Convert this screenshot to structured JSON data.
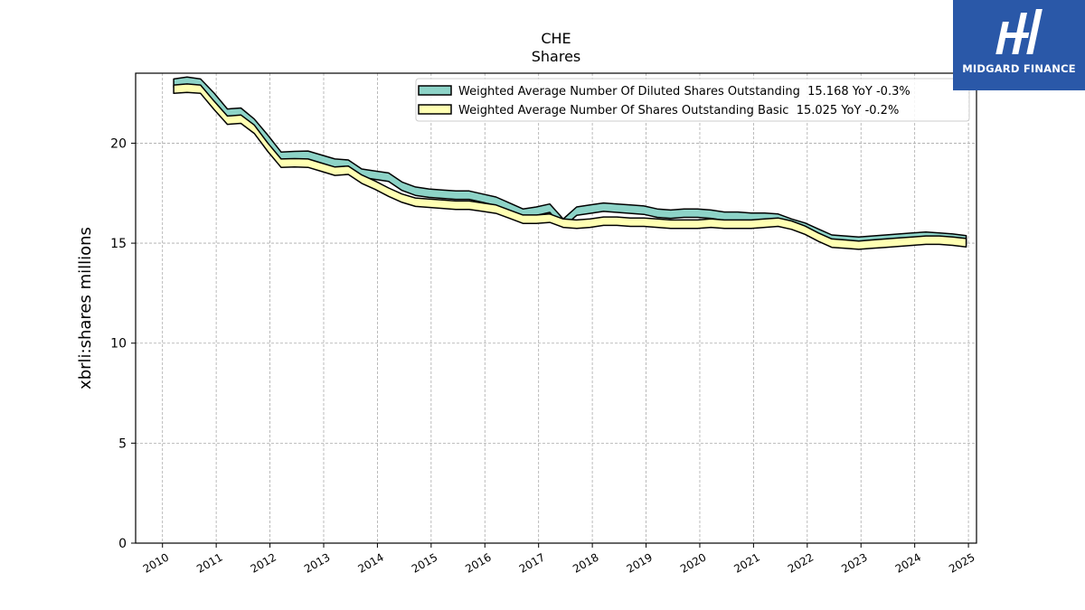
{
  "chart_data": {
    "type": "line",
    "title": "CHE",
    "subtitle": "Shares",
    "ylabel": "xbrli:shares millions",
    "xlabel": "",
    "xlim": [
      2009.5,
      2025.15
    ],
    "ylim": [
      0,
      23.5
    ],
    "yticks": [
      0,
      5,
      10,
      15,
      20
    ],
    "xticks": [
      "2010",
      "2011",
      "2012",
      "2013",
      "2014",
      "2015",
      "2016",
      "2017",
      "2018",
      "2019",
      "2020",
      "2021",
      "2022",
      "2023",
      "2024",
      "2025"
    ],
    "grid": true,
    "legend_position": "upper-right",
    "series": [
      {
        "name": "Weighted Average Number Of Diluted Shares Outstanding  15.168 YoY -0.3%",
        "color": "#8dd3c7",
        "x": [
          "2010-03",
          "2010-06",
          "2010-09",
          "2010-12",
          "2011-03",
          "2011-06",
          "2011-09",
          "2011-12",
          "2012-03",
          "2012-06",
          "2012-09",
          "2012-12",
          "2013-03",
          "2013-06",
          "2013-09",
          "2013-12",
          "2014-03",
          "2014-06",
          "2014-09",
          "2014-12",
          "2015-03",
          "2015-06",
          "2015-09",
          "2015-12",
          "2016-03",
          "2016-06",
          "2016-09",
          "2016-12",
          "2017-03",
          "2017-06",
          "2017-09",
          "2017-12",
          "2018-03",
          "2018-06",
          "2018-09",
          "2018-12",
          "2019-03",
          "2019-06",
          "2019-09",
          "2019-12",
          "2020-03",
          "2020-06",
          "2020-09",
          "2020-12",
          "2021-03",
          "2021-06",
          "2021-09",
          "2021-12",
          "2022-03",
          "2022-06",
          "2022-09",
          "2022-12",
          "2023-03",
          "2023-06",
          "2023-09",
          "2023-12",
          "2024-03",
          "2024-06",
          "2024-09",
          "2024-12"
        ],
        "values": [
          23.0,
          23.1,
          23.0,
          22.3,
          21.5,
          21.55,
          21.0,
          20.2,
          19.35,
          19.38,
          19.4,
          19.2,
          19.0,
          18.95,
          18.5,
          18.4,
          18.3,
          17.85,
          17.6,
          17.5,
          17.45,
          17.4,
          17.4,
          17.25,
          17.1,
          16.8,
          16.5,
          16.6,
          16.75,
          16.0,
          16.6,
          16.7,
          16.8,
          16.75,
          16.7,
          16.65,
          16.5,
          16.45,
          16.5,
          16.5,
          16.45,
          16.35,
          16.35,
          16.3,
          16.3,
          16.25,
          16.0,
          15.8,
          15.5,
          15.2,
          15.15,
          15.1,
          15.15,
          15.2,
          15.25,
          15.3,
          15.35,
          15.3,
          15.25,
          15.168
        ]
      },
      {
        "name": "Weighted Average Number Of Shares Outstanding Basic  15.025 YoY -0.2%",
        "color": "#ffffb3",
        "x": [
          "2010-03",
          "2010-06",
          "2010-09",
          "2010-12",
          "2011-03",
          "2011-06",
          "2011-09",
          "2011-12",
          "2012-03",
          "2012-06",
          "2012-09",
          "2012-12",
          "2013-03",
          "2013-06",
          "2013-09",
          "2013-12",
          "2014-03",
          "2014-06",
          "2014-09",
          "2014-12",
          "2015-03",
          "2015-06",
          "2015-09",
          "2015-12",
          "2016-03",
          "2016-06",
          "2016-09",
          "2016-12",
          "2017-03",
          "2017-06",
          "2017-09",
          "2017-12",
          "2018-03",
          "2018-06",
          "2018-09",
          "2018-12",
          "2019-03",
          "2019-06",
          "2019-09",
          "2019-12",
          "2020-03",
          "2020-06",
          "2020-09",
          "2020-12",
          "2021-03",
          "2021-06",
          "2021-09",
          "2021-12",
          "2022-03",
          "2022-06",
          "2022-09",
          "2022-12",
          "2023-03",
          "2023-06",
          "2023-09",
          "2023-12",
          "2024-03",
          "2024-06",
          "2024-09",
          "2024-12"
        ],
        "values": [
          22.7,
          22.75,
          22.7,
          21.9,
          21.15,
          21.2,
          20.7,
          19.8,
          19.0,
          19.02,
          19.0,
          18.8,
          18.6,
          18.65,
          18.2,
          17.9,
          17.55,
          17.25,
          17.05,
          17.0,
          16.95,
          16.9,
          16.9,
          16.8,
          16.7,
          16.45,
          16.2,
          16.2,
          16.25,
          16.0,
          15.95,
          16.0,
          16.1,
          16.1,
          16.05,
          16.05,
          16.0,
          15.95,
          15.95,
          15.95,
          16.0,
          15.95,
          15.95,
          15.95,
          16.0,
          16.05,
          15.9,
          15.65,
          15.3,
          15.0,
          14.95,
          14.9,
          14.95,
          15.0,
          15.05,
          15.1,
          15.15,
          15.15,
          15.1,
          15.025
        ]
      }
    ]
  },
  "logo": {
    "text": "MIDGARD FINANCE",
    "bg": "#2a58a8"
  }
}
